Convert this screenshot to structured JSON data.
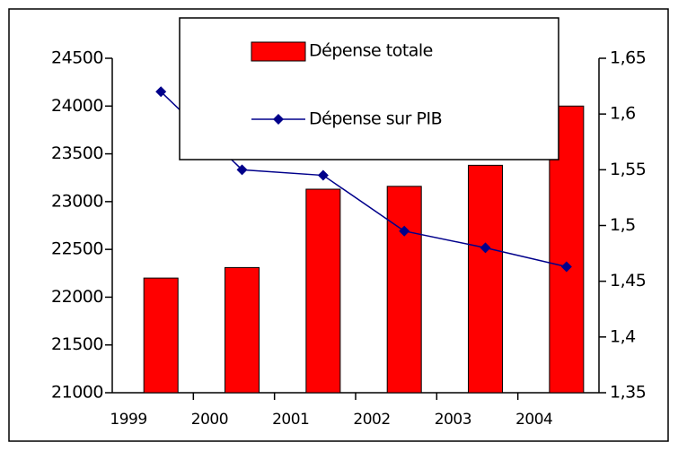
{
  "chart_data": {
    "type": "bar",
    "categories": [
      "1999",
      "2000",
      "2001",
      "2002",
      "2003",
      "2004"
    ],
    "series": [
      {
        "name": "Dépense totale",
        "type": "bar",
        "color": "#ff0000",
        "values": [
          22200,
          22310,
          23130,
          23160,
          23380,
          24000
        ]
      },
      {
        "name": "Dépense sur PIB",
        "type": "line",
        "axis": "y2",
        "color": "#00008b",
        "values": [
          1.62,
          1.55,
          1.545,
          1.495,
          1.48,
          1.463
        ]
      }
    ],
    "ylim": [
      21000,
      24500
    ],
    "yticks": [
      21000,
      21500,
      22000,
      22500,
      23000,
      23500,
      24000,
      24500
    ],
    "y2lim": [
      1.35,
      1.65
    ],
    "y2ticks": [
      {
        "value": 1.35,
        "label": "1,35"
      },
      {
        "value": 1.4,
        "label": "1,4"
      },
      {
        "value": 1.45,
        "label": "1,45"
      },
      {
        "value": 1.5,
        "label": "1,5"
      },
      {
        "value": 1.55,
        "label": "1,55"
      },
      {
        "value": 1.6,
        "label": "1,6"
      },
      {
        "value": 1.65,
        "label": "1,65"
      }
    ],
    "legend": "top"
  }
}
